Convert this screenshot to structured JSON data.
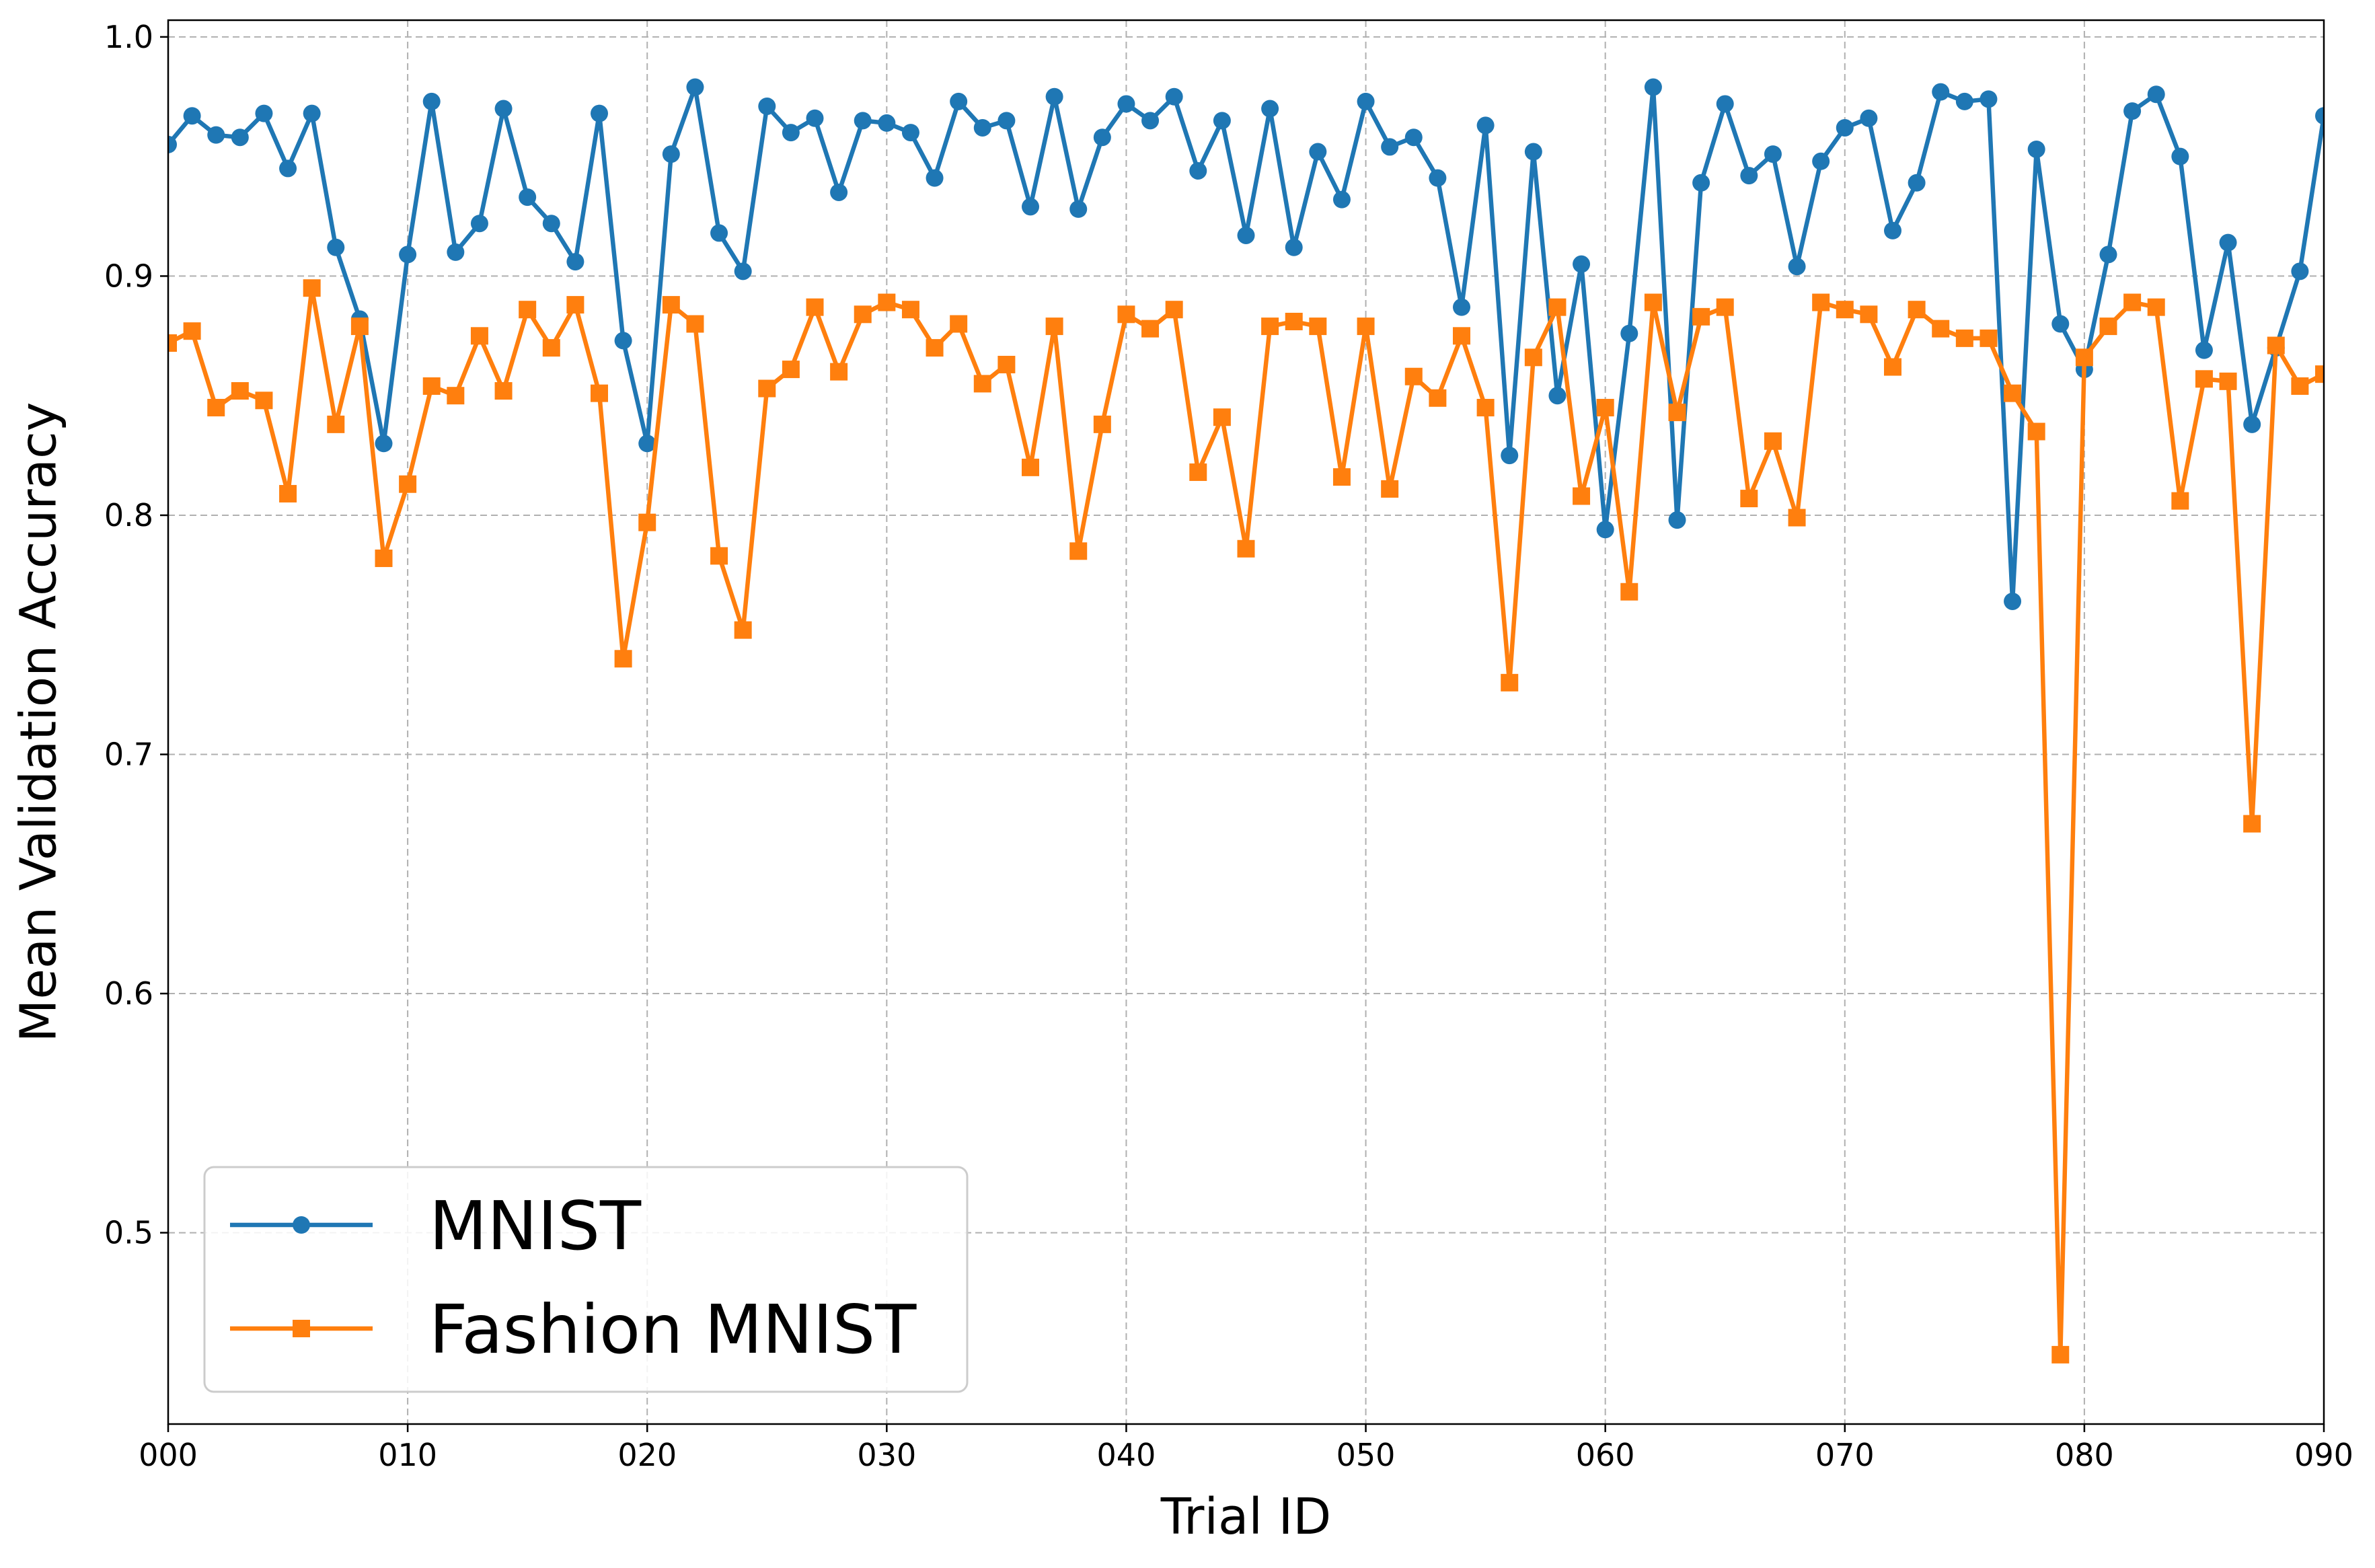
{
  "chart_data": {
    "type": "line",
    "xlabel": "Trial ID",
    "ylabel": "Mean Validation Accuracy",
    "xlim": [
      0,
      90
    ],
    "ylim": [
      0.42,
      1.007
    ],
    "grid": true,
    "legend_position": "lower-left",
    "x_ticks": [
      "000",
      "010",
      "020",
      "030",
      "040",
      "050",
      "060",
      "070",
      "080",
      "090"
    ],
    "y_ticks": [
      "0.5",
      "0.6",
      "0.7",
      "0.8",
      "0.9",
      "1.0"
    ],
    "y_tick_values": [
      0.5,
      0.6,
      0.7,
      0.8,
      0.9,
      1.0
    ],
    "x": [
      0,
      1,
      2,
      3,
      4,
      5,
      6,
      7,
      8,
      9,
      10,
      11,
      12,
      13,
      14,
      15,
      16,
      17,
      18,
      19,
      20,
      21,
      22,
      23,
      24,
      25,
      26,
      27,
      28,
      29,
      30,
      31,
      32,
      33,
      34,
      35,
      36,
      37,
      38,
      39,
      40,
      41,
      42,
      43,
      44,
      45,
      46,
      47,
      48,
      49,
      50,
      51,
      52,
      53,
      54,
      55,
      56,
      57,
      58,
      59,
      60,
      61,
      62,
      63,
      64,
      65,
      66,
      67,
      68,
      69,
      70,
      71,
      72,
      73,
      74,
      75,
      76,
      77,
      78,
      79,
      80,
      81,
      82,
      83,
      84,
      85,
      86,
      87,
      88,
      89,
      90
    ],
    "series": [
      {
        "name": "MNIST",
        "color": "#1f77b4",
        "marker": "circle",
        "values": [
          0.955,
          0.967,
          0.959,
          0.958,
          0.968,
          0.945,
          0.968,
          0.912,
          0.882,
          0.83,
          0.909,
          0.973,
          0.91,
          0.922,
          0.97,
          0.933,
          0.922,
          0.906,
          0.968,
          0.873,
          0.83,
          0.951,
          0.979,
          0.918,
          0.902,
          0.971,
          0.96,
          0.966,
          0.935,
          0.965,
          0.964,
          0.96,
          0.941,
          0.973,
          0.962,
          0.965,
          0.929,
          0.975,
          0.928,
          0.958,
          0.972,
          0.965,
          0.975,
          0.944,
          0.965,
          0.917,
          0.97,
          0.912,
          0.952,
          0.932,
          0.973,
          0.954,
          0.958,
          0.941,
          0.887,
          0.963,
          0.825,
          0.952,
          0.85,
          0.905,
          0.794,
          0.876,
          0.979,
          0.798,
          0.939,
          0.972,
          0.942,
          0.951,
          0.904,
          0.948,
          0.962,
          0.966,
          0.919,
          0.939,
          0.977,
          0.973,
          0.974,
          0.764,
          0.953,
          0.88,
          0.861,
          0.909,
          0.969,
          0.976,
          0.95,
          0.869,
          0.914,
          0.838,
          0.87,
          0.902,
          0.967
        ]
      },
      {
        "name": "Fashion MNIST",
        "color": "#ff7f0e",
        "marker": "square",
        "values": [
          0.872,
          0.877,
          0.845,
          0.852,
          0.848,
          0.809,
          0.895,
          0.838,
          0.879,
          0.782,
          0.813,
          0.854,
          0.85,
          0.875,
          0.852,
          0.886,
          0.87,
          0.888,
          0.851,
          0.74,
          0.797,
          0.888,
          0.88,
          0.783,
          0.752,
          0.853,
          0.861,
          0.887,
          0.86,
          0.884,
          0.889,
          0.886,
          0.87,
          0.88,
          0.855,
          0.863,
          0.82,
          0.879,
          0.785,
          0.838,
          0.884,
          0.878,
          0.886,
          0.818,
          0.841,
          0.786,
          0.879,
          0.881,
          0.879,
          0.816,
          0.879,
          0.811,
          0.858,
          0.849,
          0.875,
          0.845,
          0.73,
          0.866,
          0.887,
          0.808,
          0.845,
          0.768,
          0.889,
          0.843,
          0.883,
          0.887,
          0.807,
          0.831,
          0.799,
          0.889,
          0.886,
          0.884,
          0.862,
          0.886,
          0.878,
          0.874,
          0.874,
          0.851,
          0.835,
          0.449,
          0.866,
          0.879,
          0.889,
          0.887,
          0.806,
          0.857,
          0.856,
          0.671,
          0.871,
          0.854,
          0.859
        ]
      }
    ]
  }
}
